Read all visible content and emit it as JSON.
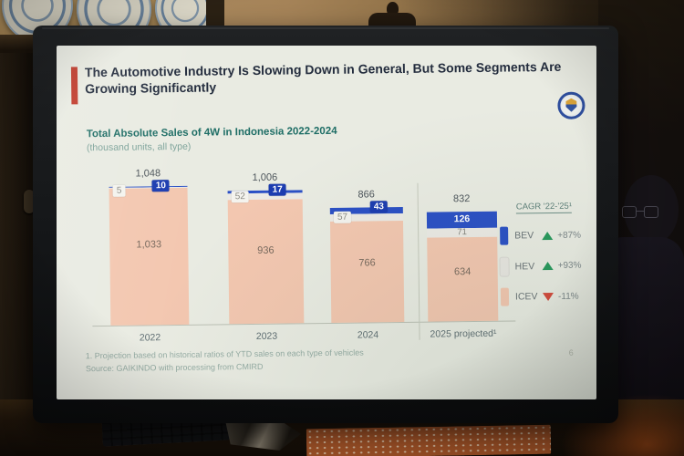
{
  "slide": {
    "title": "The Automotive Industry Is Slowing Down in General, But Some Segments Are Growing Significantly",
    "page_number": "6",
    "accent_color": "#c13a2a"
  },
  "chart_data": {
    "type": "bar",
    "stacked": true,
    "title": "Total Absolute Sales of 4W in Indonesia 2022-2024",
    "subtitle": "(thousand units, all type)",
    "categories": [
      "2022",
      "2023",
      "2024",
      "2025 projected¹"
    ],
    "totals": [
      1048,
      1006,
      866,
      832
    ],
    "total_labels": [
      "1,048",
      "1,006",
      "866",
      "832"
    ],
    "series": [
      {
        "name": "ICEV",
        "color": "#f3c7b0",
        "values": [
          1033,
          936,
          766,
          634
        ],
        "labels": [
          "1,033",
          "936",
          "766",
          "634"
        ]
      },
      {
        "name": "HEV",
        "color": "#eceae5",
        "values": [
          5,
          52,
          57,
          71
        ],
        "labels": [
          "5",
          "52",
          "57",
          "71"
        ]
      },
      {
        "name": "BEV",
        "color": "#2b50c5",
        "values": [
          10,
          17,
          43,
          126
        ],
        "labels": [
          "10",
          "17",
          "43",
          "126"
        ]
      }
    ],
    "ylim": [
      0,
      1100
    ],
    "grid": false,
    "legend": {
      "header": "CAGR '22-'25¹",
      "position": "right",
      "items": [
        {
          "name": "BEV",
          "color": "#2b50c5",
          "trend": "up",
          "value": "+87%"
        },
        {
          "name": "HEV",
          "color": "#e8e6e1",
          "trend": "up",
          "value": "+93%"
        },
        {
          "name": "ICEV",
          "color": "#f3c7b0",
          "trend": "down",
          "value": "-11%"
        }
      ]
    },
    "footnotes": [
      "1. Projection based on historical ratios of YTD sales on each type of vehicles",
      "Source: GAIKINDO with processing from CMIRD"
    ]
  }
}
